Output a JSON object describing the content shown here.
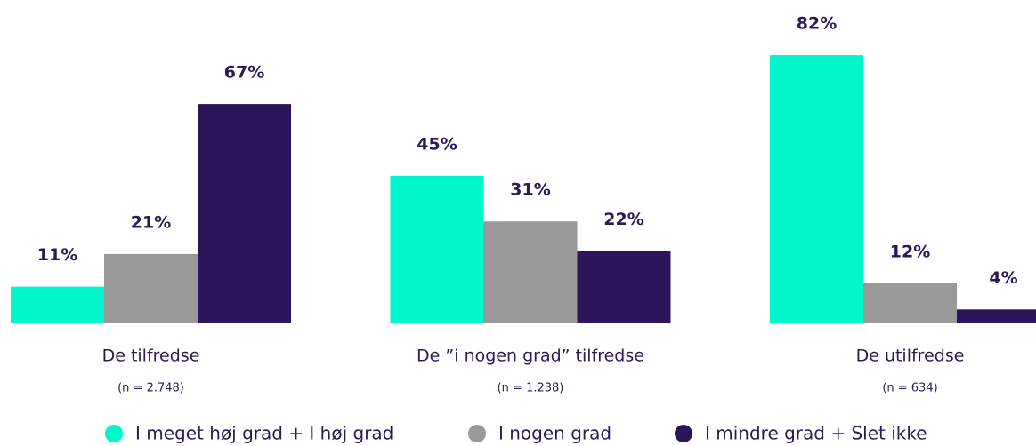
{
  "chart_data": {
    "type": "bar",
    "categories": [
      "De tilfredse",
      "De ”i nogen grad” tilfredse",
      "De utilfredse"
    ],
    "category_notes": [
      "(n = 2.748)",
      "(n = 1.238)",
      "(n = 634)"
    ],
    "series": [
      {
        "name": "I meget høj grad + I høj grad",
        "color": "#00f7cb",
        "values": [
          11,
          45,
          82
        ],
        "value_labels": [
          "11%",
          "45%",
          "82%"
        ]
      },
      {
        "name": "I nogen grad",
        "color": "#999999",
        "values": [
          21,
          31,
          12
        ],
        "value_labels": [
          "21%",
          "31%",
          "12%"
        ]
      },
      {
        "name": "I mindre grad + Slet ikke",
        "color": "#2d155c",
        "values": [
          67,
          22,
          4
        ],
        "value_labels": [
          "67%",
          "22%",
          "4%"
        ]
      }
    ],
    "legend": "bottom"
  }
}
